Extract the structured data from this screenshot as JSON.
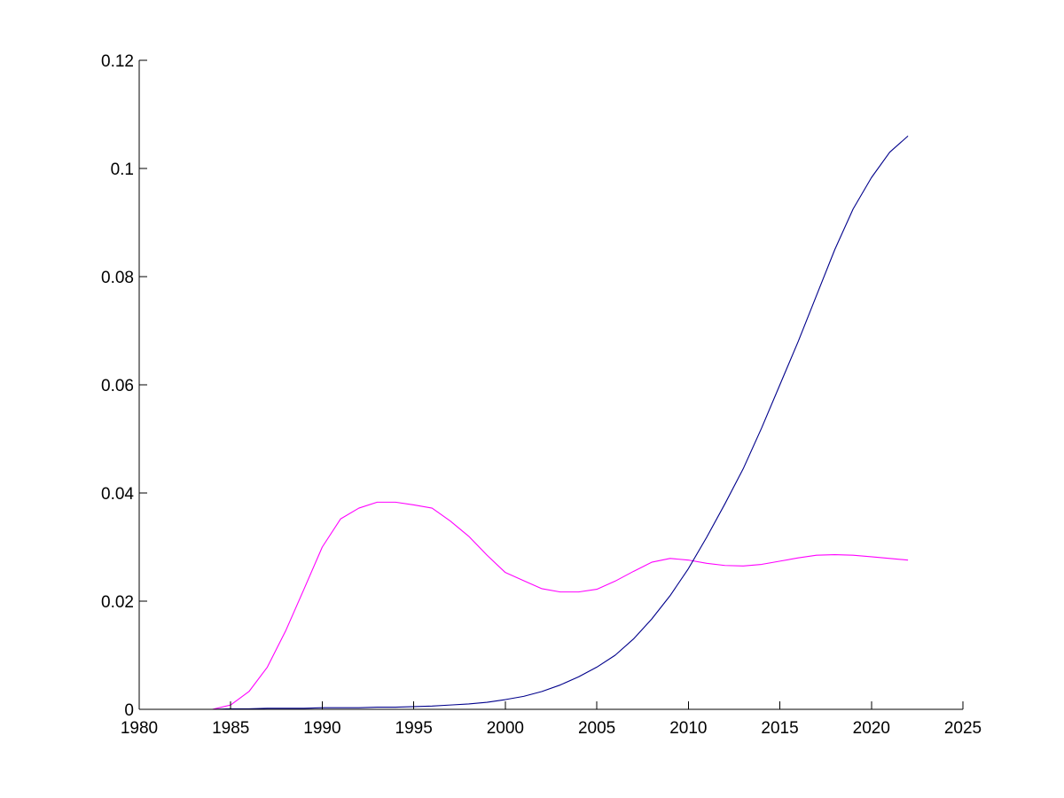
{
  "chart_data": {
    "type": "line",
    "title": "",
    "xlabel": "",
    "ylabel": "",
    "xlim": [
      1980,
      2025
    ],
    "ylim": [
      0,
      0.12
    ],
    "xticks": [
      1980,
      1985,
      1990,
      1995,
      2000,
      2005,
      2010,
      2015,
      2020,
      2025
    ],
    "xtick_labels": [
      "1980",
      "1985",
      "1990",
      "1995",
      "2000",
      "2005",
      "2010",
      "2015",
      "2020",
      "2025"
    ],
    "yticks": [
      0,
      0.02,
      0.04,
      0.06,
      0.08,
      0.1,
      0.12
    ],
    "ytick_labels": [
      "0",
      "0.02",
      "0.04",
      "0.06",
      "0.08",
      "0.1",
      "0.12"
    ],
    "grid": false,
    "legend": null,
    "series": [
      {
        "color": "#ff00ff",
        "x": [
          1980,
          1981,
          1982,
          1983,
          1984,
          1985,
          1986,
          1987,
          1988,
          1989,
          1990,
          1991,
          1992,
          1993,
          1994,
          1995,
          1996,
          1997,
          1998,
          1999,
          2000,
          2001,
          2002,
          2003,
          2004,
          2005,
          2006,
          2007,
          2008,
          2009,
          2010,
          2011,
          2012,
          2013,
          2014,
          2015,
          2016,
          2017,
          2018,
          2019,
          2020,
          2021,
          2022
        ],
        "y": [
          0,
          0,
          0,
          0,
          0,
          0.0008,
          0.0033,
          0.0078,
          0.0145,
          0.0222,
          0.03,
          0.0352,
          0.0372,
          0.0383,
          0.0383,
          0.0378,
          0.0372,
          0.0348,
          0.032,
          0.0285,
          0.0253,
          0.0238,
          0.0223,
          0.0217,
          0.0217,
          0.0222,
          0.0237,
          0.0255,
          0.0272,
          0.0279,
          0.0276,
          0.027,
          0.0266,
          0.0265,
          0.0268,
          0.0274,
          0.028,
          0.0285,
          0.0286,
          0.0285,
          0.0282,
          0.0279,
          0.0276
        ]
      },
      {
        "color": "#00008b",
        "x": [
          1980,
          1981,
          1982,
          1983,
          1984,
          1985,
          1986,
          1987,
          1988,
          1989,
          1990,
          1991,
          1992,
          1993,
          1994,
          1995,
          1996,
          1997,
          1998,
          1999,
          2000,
          2001,
          2002,
          2003,
          2004,
          2005,
          2006,
          2007,
          2008,
          2009,
          2010,
          2011,
          2012,
          2013,
          2014,
          2015,
          2016,
          2017,
          2018,
          2019,
          2020,
          2021,
          2022
        ],
        "y": [
          0,
          0,
          0,
          0,
          0,
          0.0001,
          0.0001,
          0.0002,
          0.0002,
          0.0002,
          0.0003,
          0.0003,
          0.0003,
          0.0004,
          0.0004,
          0.0005,
          0.0006,
          0.0008,
          0.001,
          0.0013,
          0.0018,
          0.0024,
          0.0033,
          0.0045,
          0.006,
          0.0078,
          0.01,
          0.013,
          0.0167,
          0.021,
          0.026,
          0.0318,
          0.038,
          0.0445,
          0.052,
          0.06,
          0.068,
          0.0765,
          0.085,
          0.0925,
          0.0983,
          0.103,
          0.106
        ]
      }
    ]
  }
}
